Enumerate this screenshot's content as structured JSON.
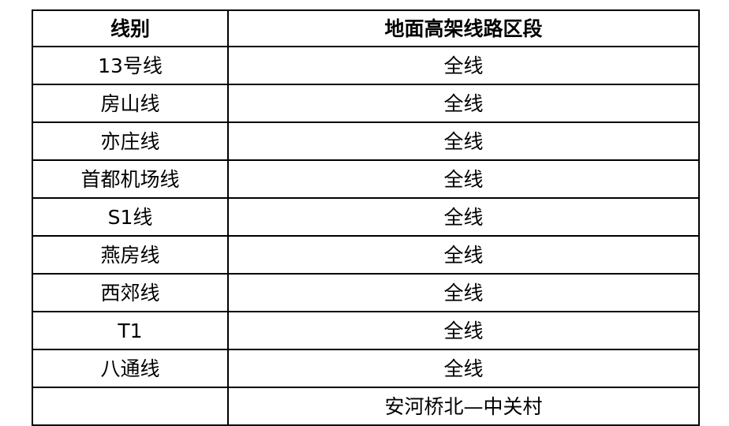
{
  "table": {
    "headers": [
      "线别",
      "地面高架线路区段"
    ],
    "rows": [
      [
        "13号线",
        "全线"
      ],
      [
        "房山线",
        "全线"
      ],
      [
        "亦庄线",
        "全线"
      ],
      [
        "首都机场线",
        "全线"
      ],
      [
        "S1线",
        "全线"
      ],
      [
        "燕房线",
        "全线"
      ],
      [
        "西郊线",
        "全线"
      ],
      [
        "T1",
        "全线"
      ],
      [
        "八通线",
        "全线"
      ],
      [
        "",
        "安河桥北—中关村"
      ]
    ]
  }
}
